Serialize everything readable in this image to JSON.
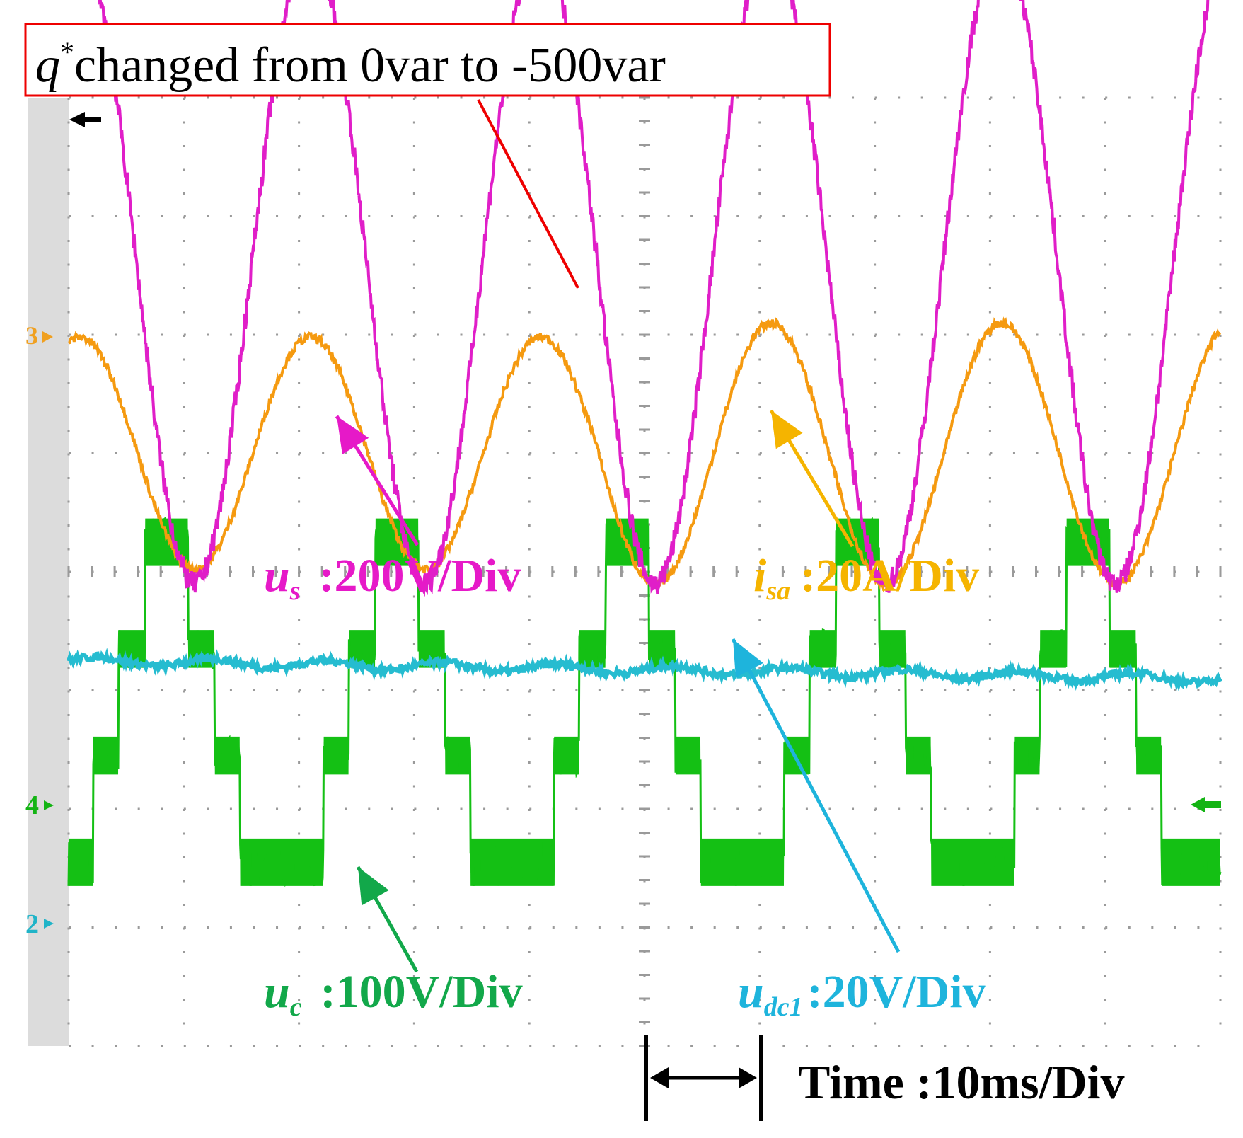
{
  "annotation": {
    "q_symbol": "q",
    "q_superscript": "*",
    "text": "changed from 0var to -500var"
  },
  "channels": {
    "ch2": "2",
    "ch3": "3",
    "ch4": "4"
  },
  "labels": {
    "us": {
      "var": "u",
      "sub": "s",
      "scale": ":200V/Div"
    },
    "isa": {
      "var": "i",
      "sub": "sa",
      "scale": ":20A/Div"
    },
    "udc1": {
      "var": "u",
      "sub": "dc1",
      "scale": ":20V/Div"
    },
    "uc": {
      "var": "u",
      "sub": "c",
      "scale": ":100V/Div"
    }
  },
  "time_label": "Time :10ms/Div",
  "colors": {
    "us": "#e01ec8",
    "isa": "#f59a10",
    "udc1": "#26bcd0",
    "uc": "#14c014",
    "us_label": "#e619c8",
    "isa_label": "#f5b400",
    "udc1_label": "#1eb4dc",
    "uc_label": "#12a84a",
    "marker": "#ee0000",
    "grid": "#9a9a9a"
  },
  "chart_data": {
    "type": "line",
    "title": "q* changed from 0var to -500var",
    "x_unit": "ms",
    "x_div": 10,
    "x_range": [
      0,
      100
    ],
    "y_divisions": 8,
    "series": [
      {
        "name": "us",
        "unit": "V",
        "scale_per_div": 200,
        "frequency_hz": 50,
        "amplitude_div": 2.7,
        "offset_div": 6.6
      },
      {
        "name": "isa",
        "unit": "A",
        "scale_per_div": 20,
        "frequency_hz": 50,
        "amplitude_div_before": 0.98,
        "amplitude_div_after": 1.1,
        "offset_div": 5.0
      },
      {
        "name": "udc1",
        "unit": "V",
        "scale_per_div": 20,
        "offset_div": 3.25,
        "ripple_div": 0.1,
        "trend_div": -0.15
      },
      {
        "name": "uc",
        "unit": "V",
        "scale_per_div": 100,
        "frequency_hz": 50,
        "levels_div": [
          1.55,
          2.45,
          3.35,
          4.25
        ],
        "offset_div": 2.9
      }
    ],
    "event": {
      "label": "q* changed from 0var to -500var",
      "time_ms": 45
    }
  }
}
